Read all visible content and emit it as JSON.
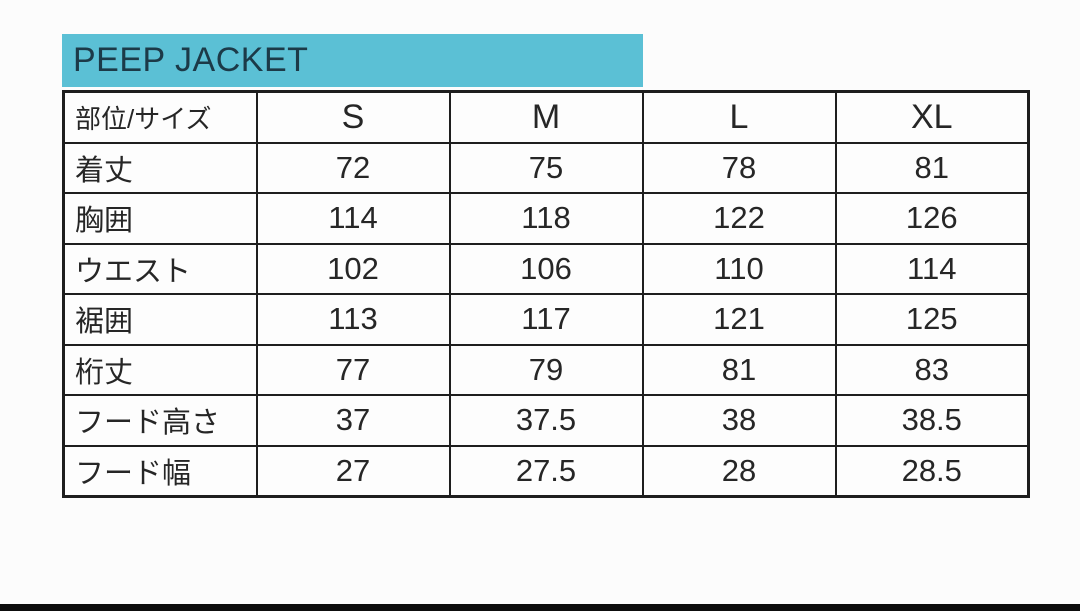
{
  "title_bar": {
    "label": "PEEP JACKET"
  },
  "colors": {
    "title_bar_bg": "#5bc0d5",
    "title_text": "#1c3a48",
    "table_border": "#1e1e1e",
    "cell_text": "#262626",
    "background": "#fcfcfc",
    "letterbox_bar": "#0d0d0d"
  },
  "table": {
    "corner_header": "部位/サイズ",
    "size_headers": [
      "S",
      "M",
      "L",
      "XL"
    ],
    "rows": [
      {
        "label": "着丈",
        "values": [
          "72",
          "75",
          "78",
          "81"
        ]
      },
      {
        "label": "胸囲",
        "values": [
          "114",
          "118",
          "122",
          "126"
        ]
      },
      {
        "label": "ウエスト",
        "values": [
          "102",
          "106",
          "110",
          "114"
        ]
      },
      {
        "label": "裾囲",
        "values": [
          "113",
          "117",
          "121",
          "125"
        ]
      },
      {
        "label": "桁丈",
        "values": [
          "77",
          "79",
          "81",
          "83"
        ]
      },
      {
        "label": "フード高さ",
        "values": [
          "37",
          "37.5",
          "38",
          "38.5"
        ]
      },
      {
        "label": "フード幅",
        "values": [
          "27",
          "27.5",
          "28",
          "28.5"
        ]
      }
    ]
  },
  "chart_data": {
    "type": "table",
    "title": "PEEP JACKET",
    "columns": [
      "部位/サイズ",
      "S",
      "M",
      "L",
      "XL"
    ],
    "rows": [
      [
        "着丈",
        72,
        75,
        78,
        81
      ],
      [
        "胸囲",
        114,
        118,
        122,
        126
      ],
      [
        "ウエスト",
        102,
        106,
        110,
        114
      ],
      [
        "裾囲",
        113,
        117,
        121,
        125
      ],
      [
        "桁丈",
        77,
        79,
        81,
        83
      ],
      [
        "フード高さ",
        37,
        37.5,
        38,
        38.5
      ],
      [
        "フード幅",
        27,
        27.5,
        28,
        28.5
      ]
    ]
  }
}
